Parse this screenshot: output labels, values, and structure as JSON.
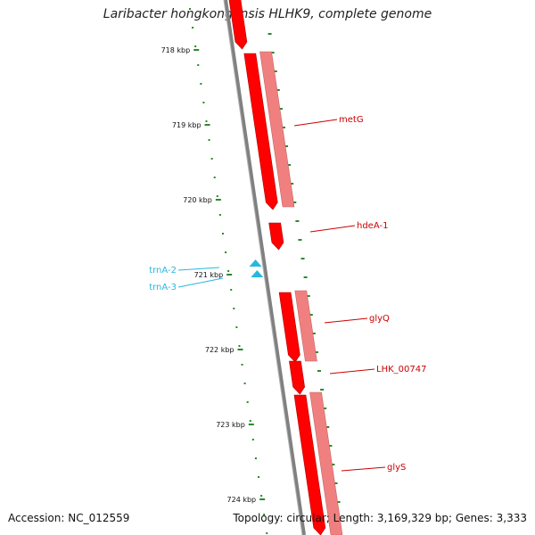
{
  "title": "Laribacter hongkongensis HLHK9, complete genome",
  "accession_text": "Accession: NC_012559",
  "summary_text": "Topology: circular; Length: 3,169,329 bp; Genes: 3,333",
  "colors": {
    "gene_outer": "#ff0000",
    "gene_inner": "#f08080",
    "trna": "#27b8e0",
    "tick": "#2a8a2a",
    "backbone": "#808080"
  },
  "ticks": [
    {
      "label": "718 kbp",
      "kbp": 718
    },
    {
      "label": "719 kbp",
      "kbp": 719
    },
    {
      "label": "720 kbp",
      "kbp": 720
    },
    {
      "label": "721 kbp",
      "kbp": 721
    },
    {
      "label": "722 kbp",
      "kbp": 722
    },
    {
      "label": "723 kbp",
      "kbp": 723
    },
    {
      "label": "724 kbp",
      "kbp": 724
    }
  ],
  "genes": [
    {
      "name": "metG",
      "strand": "+"
    },
    {
      "name": "hdeA-1",
      "strand": "+"
    },
    {
      "name": "glyQ",
      "strand": "+"
    },
    {
      "name": "LHK_00747",
      "strand": "+"
    },
    {
      "name": "glyS",
      "strand": "+"
    }
  ],
  "trnas": [
    {
      "name": "trnA-2"
    },
    {
      "name": "trnA-3"
    }
  ]
}
